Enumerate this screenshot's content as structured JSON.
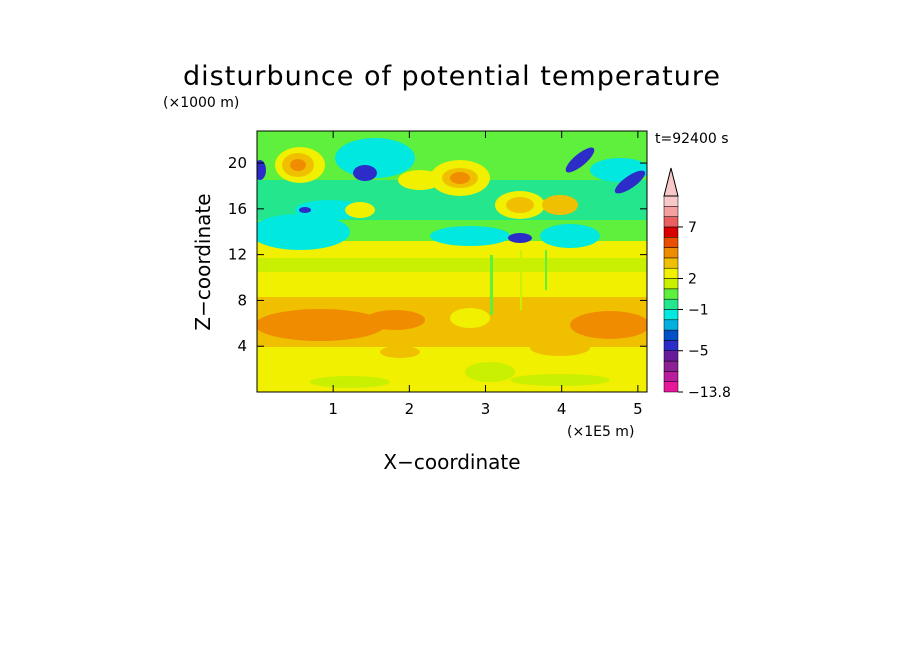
{
  "chart_data": {
    "type": "heatmap",
    "title": "disturbunce of potential temperature",
    "xlabel": "X−coordinate",
    "ylabel": "Z−coordinate",
    "x_unit": "(×1E5 m)",
    "y_unit": "(×1000 m)",
    "time_label": "t=92400 s",
    "xlim": [
      0,
      5.12
    ],
    "ylim": [
      0,
      22.8
    ],
    "x_ticks": [
      1,
      2,
      3,
      4,
      5
    ],
    "y_ticks": [
      4,
      8,
      12,
      16,
      20
    ],
    "x_tick_labels": [
      "1",
      "2",
      "3",
      "4",
      "5"
    ],
    "y_tick_labels": [
      "4",
      "8",
      "12",
      "16",
      "20"
    ],
    "colorbar": {
      "colors": [
        "#e8179a",
        "#b81e9e",
        "#8c2196",
        "#6a1b9a",
        "#2c2cc8",
        "#0050c8",
        "#00b0e0",
        "#00e8e0",
        "#24e68c",
        "#5ef03c",
        "#c8f000",
        "#f0f000",
        "#f0c000",
        "#f08c00",
        "#e85000",
        "#d80000",
        "#e86060",
        "#f4a0a0",
        "#f8c8c8"
      ],
      "tick_labels": [
        "7",
        "2",
        "−1",
        "−5",
        "−13.8"
      ],
      "tick_values": [
        7,
        2,
        -1,
        -5,
        -13.8
      ],
      "min": -13.8,
      "extend": "max"
    },
    "field_description_bands": [
      {
        "z_range": [
          0,
          2
        ],
        "level": 1
      },
      {
        "z_range": [
          2,
          4.5
        ],
        "level": 1.5
      },
      {
        "z_range": [
          4.5,
          7.5
        ],
        "level": 2.5
      },
      {
        "z_range": [
          7.5,
          9.5
        ],
        "level": 1
      },
      {
        "z_range": [
          9.5,
          11
        ],
        "level": 0.5
      },
      {
        "z_range": [
          11,
          15
        ],
        "level": -0.5
      },
      {
        "z_range": [
          15,
          19
        ],
        "level": 0
      },
      {
        "z_range": [
          19,
          22.8
        ],
        "level": 0.5
      }
    ]
  }
}
